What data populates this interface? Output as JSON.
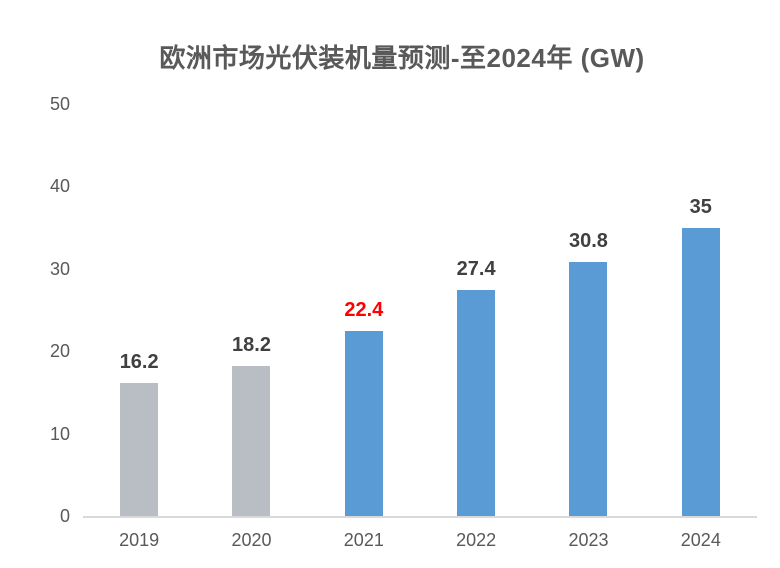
{
  "chart_data": {
    "type": "bar",
    "title": "欧洲市场光伏装机量预测-至2024年 (GW)",
    "categories": [
      "2019",
      "2020",
      "2021",
      "2022",
      "2023",
      "2024"
    ],
    "values": [
      16.2,
      18.2,
      22.4,
      27.4,
      30.8,
      35
    ],
    "value_labels": [
      "16.2",
      "18.2",
      "22.4",
      "27.4",
      "30.8",
      "35"
    ],
    "bar_colors": [
      "#B9BEC4",
      "#B9BEC4",
      "#5B9BD5",
      "#5B9BD5",
      "#5B9BD5",
      "#5B9BD5"
    ],
    "value_label_colors": [
      "#404040",
      "#404040",
      "#FF0000",
      "#404040",
      "#404040",
      "#404040"
    ],
    "xlabel": "",
    "ylabel": "",
    "ylim": [
      0,
      50
    ],
    "yticks": [
      0,
      10,
      20,
      30,
      40,
      50
    ],
    "grid": false,
    "legend": false,
    "legend_position": "none"
  },
  "colors": {
    "title": "#595959",
    "axis_text": "#595959",
    "baseline": "#D9D9D9",
    "accent_blue": "#5B9BD5",
    "muted_gray": "#B9BEC4",
    "highlight_red": "#FF0000",
    "background": "#FFFFFF"
  }
}
